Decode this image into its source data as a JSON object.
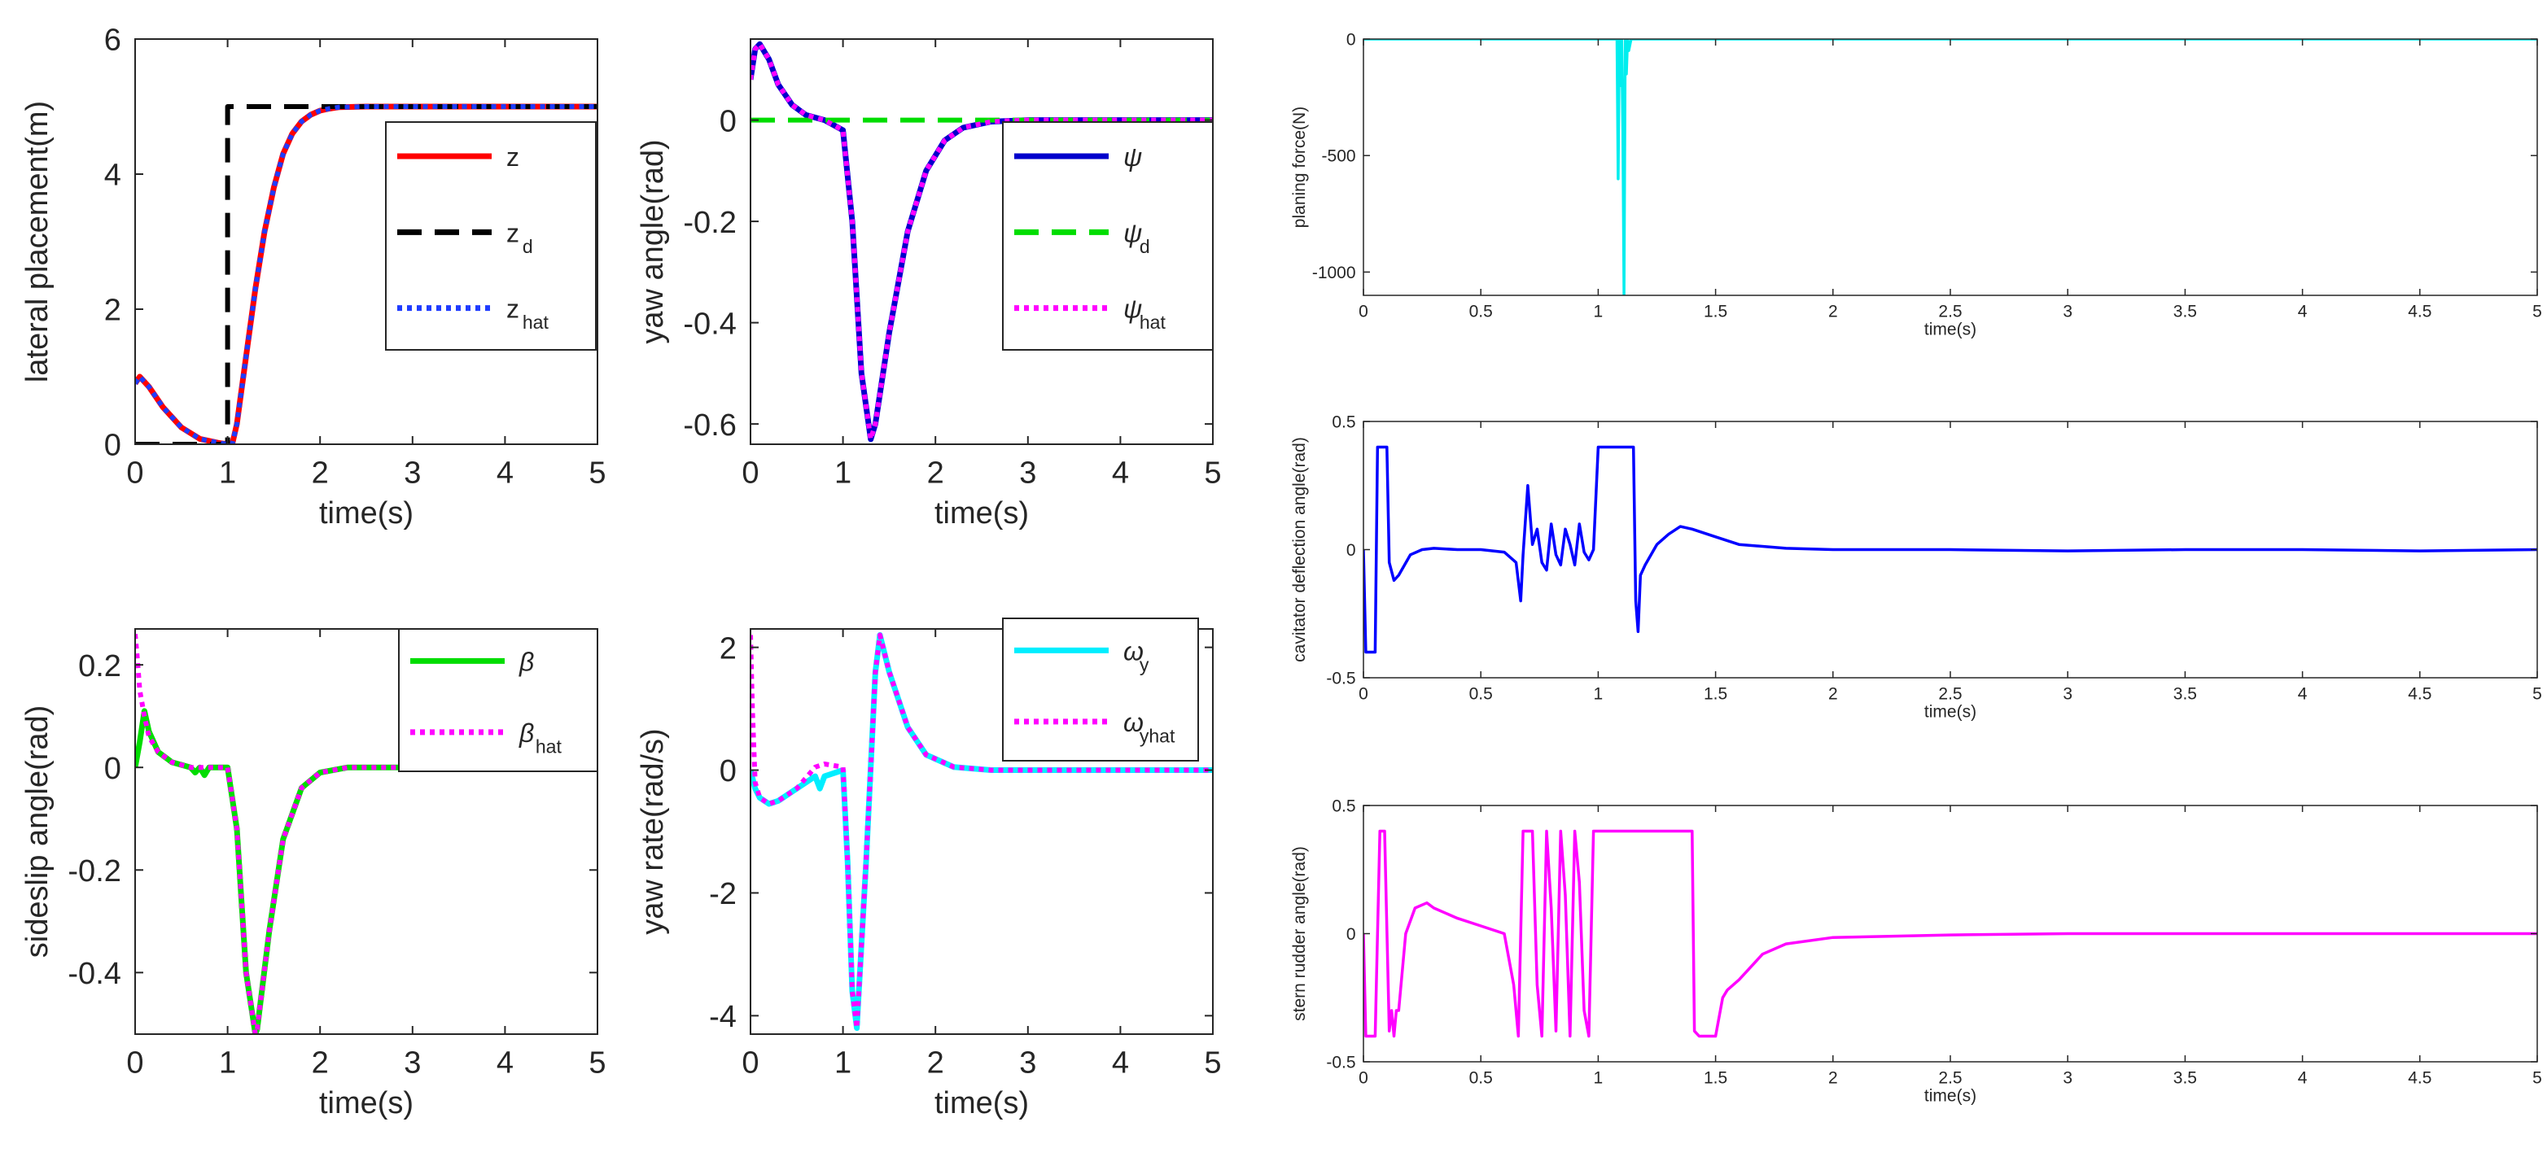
{
  "chart_data": [
    {
      "id": "lateral",
      "type": "line",
      "xlabel": "time(s)",
      "ylabel": "lateral placement(m)",
      "xlim": [
        0,
        5
      ],
      "ylim": [
        0,
        6
      ],
      "xticks": [
        0,
        1,
        2,
        3,
        4,
        5
      ],
      "xtick_labels": [
        "0",
        "1",
        "2",
        "3",
        "4",
        "5"
      ],
      "yticks": [
        0,
        2,
        4,
        6
      ],
      "ytick_labels": [
        "0",
        "2",
        "4",
        "6"
      ],
      "legend_loc": "right",
      "series": [
        {
          "name": "z",
          "legend": {
            "base": "z",
            "sub": ""
          },
          "color": "#ff0000",
          "dash": "solid",
          "x": [
            0,
            0.05,
            0.15,
            0.3,
            0.5,
            0.7,
            0.9,
            1.0,
            1.05,
            1.1,
            1.2,
            1.3,
            1.4,
            1.5,
            1.6,
            1.7,
            1.8,
            1.9,
            2.0,
            2.1,
            2.2,
            2.5,
            3,
            4,
            5
          ],
          "y": [
            0.9,
            1.0,
            0.85,
            0.55,
            0.25,
            0.08,
            0.02,
            0.0,
            0.0,
            0.3,
            1.3,
            2.3,
            3.15,
            3.8,
            4.3,
            4.6,
            4.78,
            4.88,
            4.94,
            4.97,
            4.99,
            5.0,
            5.0,
            5.0,
            5.0
          ]
        },
        {
          "name": "z_d",
          "legend": {
            "base": "z",
            "sub": "d"
          },
          "color": "#000000",
          "dash": "dashed",
          "x": [
            0,
            1.0,
            1.0,
            5
          ],
          "y": [
            0,
            0,
            5,
            5
          ]
        },
        {
          "name": "z_hat",
          "legend": {
            "base": "z",
            "sub": "hat"
          },
          "color": "#1f3cff",
          "dash": "dotted",
          "x": [
            0,
            0.05,
            0.15,
            0.3,
            0.5,
            0.7,
            0.9,
            1.0,
            1.05,
            1.1,
            1.2,
            1.3,
            1.4,
            1.5,
            1.6,
            1.7,
            1.8,
            1.9,
            2.0,
            2.1,
            2.2,
            2.5,
            3,
            4,
            5
          ],
          "y": [
            0.9,
            1.0,
            0.85,
            0.55,
            0.25,
            0.08,
            0.02,
            0.0,
            0.0,
            0.3,
            1.3,
            2.3,
            3.15,
            3.8,
            4.3,
            4.6,
            4.78,
            4.88,
            4.94,
            4.97,
            4.99,
            5.0,
            5.0,
            5.0,
            5.0
          ]
        }
      ]
    },
    {
      "id": "yaw",
      "type": "line",
      "xlabel": "time(s)",
      "ylabel": "yaw angle(rad)",
      "xlim": [
        0,
        5
      ],
      "ylim": [
        -0.64,
        0.16
      ],
      "xticks": [
        0,
        1,
        2,
        3,
        4,
        5
      ],
      "xtick_labels": [
        "0",
        "1",
        "2",
        "3",
        "4",
        "5"
      ],
      "yticks": [
        -0.6,
        -0.4,
        -0.2,
        0
      ],
      "ytick_labels": [
        "-0.6",
        "-0.4",
        "-0.2",
        "0"
      ],
      "legend_loc": "right",
      "series": [
        {
          "name": "psi",
          "legend": {
            "base": "ψ",
            "sub": ""
          },
          "color": "#0000cc",
          "dash": "solid",
          "x": [
            0,
            0.05,
            0.1,
            0.2,
            0.3,
            0.45,
            0.6,
            0.8,
            1.0,
            1.1,
            1.2,
            1.3,
            1.35,
            1.5,
            1.7,
            1.9,
            2.1,
            2.3,
            2.6,
            3,
            5
          ],
          "y": [
            0.08,
            0.14,
            0.15,
            0.12,
            0.07,
            0.03,
            0.01,
            0.0,
            -0.02,
            -0.2,
            -0.5,
            -0.63,
            -0.6,
            -0.42,
            -0.22,
            -0.1,
            -0.04,
            -0.015,
            -0.003,
            0.0,
            0.0
          ]
        },
        {
          "name": "psi_d",
          "legend": {
            "base": "ψ",
            "sub": "d"
          },
          "color": "#00dd00",
          "dash": "dashed",
          "x": [
            0,
            5
          ],
          "y": [
            0,
            0
          ]
        },
        {
          "name": "psi_hat",
          "legend": {
            "base": "ψ",
            "sub": "hat"
          },
          "color": "#ff00ff",
          "dash": "dotted",
          "x": [
            0,
            0.05,
            0.1,
            0.2,
            0.3,
            0.45,
            0.6,
            0.8,
            1.0,
            1.1,
            1.2,
            1.3,
            1.35,
            1.5,
            1.7,
            1.9,
            2.1,
            2.3,
            2.6,
            3,
            5
          ],
          "y": [
            0.08,
            0.14,
            0.15,
            0.12,
            0.07,
            0.03,
            0.01,
            0.0,
            -0.02,
            -0.2,
            -0.5,
            -0.63,
            -0.6,
            -0.42,
            -0.22,
            -0.1,
            -0.04,
            -0.015,
            -0.003,
            0.0,
            0.0
          ]
        }
      ]
    },
    {
      "id": "sideslip",
      "type": "line",
      "xlabel": "time(s)",
      "ylabel": "sideslip angle(rad)",
      "xlim": [
        0,
        5
      ],
      "ylim": [
        -0.52,
        0.27
      ],
      "xticks": [
        0,
        1,
        2,
        3,
        4,
        5
      ],
      "xtick_labels": [
        "0",
        "1",
        "2",
        "3",
        "4",
        "5"
      ],
      "yticks": [
        -0.4,
        -0.2,
        0,
        0.2
      ],
      "ytick_labels": [
        "-0.4",
        "-0.2",
        "0",
        "0.2"
      ],
      "legend_loc": "top-right",
      "series": [
        {
          "name": "beta",
          "legend": {
            "base": "β",
            "sub": ""
          },
          "color": "#00dd00",
          "dash": "solid",
          "x": [
            0,
            0.05,
            0.1,
            0.15,
            0.25,
            0.4,
            0.6,
            0.65,
            0.7,
            0.75,
            0.8,
            1.0,
            1.1,
            1.2,
            1.3,
            1.32,
            1.45,
            1.6,
            1.8,
            2.0,
            2.3,
            3,
            5
          ],
          "y": [
            0.0,
            0.05,
            0.11,
            0.07,
            0.03,
            0.01,
            0.0,
            -0.01,
            0.0,
            -0.015,
            0.0,
            0.0,
            -0.12,
            -0.4,
            -0.52,
            -0.51,
            -0.32,
            -0.14,
            -0.04,
            -0.01,
            0.0,
            0.0,
            0.0
          ]
        },
        {
          "name": "beta_hat",
          "legend": {
            "base": "β",
            "sub": "hat"
          },
          "color": "#ff00ff",
          "dash": "dotted",
          "x": [
            0,
            0.02,
            0.05,
            0.1,
            0.15,
            0.25,
            0.4,
            0.6,
            0.8,
            1.0,
            1.1,
            1.2,
            1.3,
            1.32,
            1.45,
            1.6,
            1.8,
            2.0,
            2.3,
            3,
            5
          ],
          "y": [
            0.26,
            0.22,
            0.15,
            0.1,
            0.06,
            0.03,
            0.01,
            0.0,
            0.0,
            0.0,
            -0.12,
            -0.4,
            -0.52,
            -0.51,
            -0.32,
            -0.14,
            -0.04,
            -0.01,
            0.0,
            0.0,
            0.0
          ]
        }
      ]
    },
    {
      "id": "yawrate",
      "type": "line",
      "xlabel": "time(s)",
      "ylabel": "yaw rate(rad/s)",
      "xlim": [
        0,
        5
      ],
      "ylim": [
        -4.3,
        2.3
      ],
      "xticks": [
        0,
        1,
        2,
        3,
        4,
        5
      ],
      "xtick_labels": [
        "0",
        "1",
        "2",
        "3",
        "4",
        "5"
      ],
      "yticks": [
        -4,
        -2,
        0,
        2
      ],
      "ytick_labels": [
        "-4",
        "-2",
        "0",
        "2"
      ],
      "legend_loc": "top-right",
      "series": [
        {
          "name": "omega_y",
          "legend": {
            "base": "ω",
            "sub": "y"
          },
          "color": "#00eeff",
          "dash": "solid",
          "x": [
            0,
            0.05,
            0.1,
            0.2,
            0.3,
            0.5,
            0.7,
            0.75,
            0.8,
            1.0,
            1.05,
            1.1,
            1.15,
            1.25,
            1.35,
            1.4,
            1.5,
            1.7,
            1.9,
            2.2,
            2.6,
            5
          ],
          "y": [
            0.0,
            -0.3,
            -0.45,
            -0.55,
            -0.5,
            -0.3,
            -0.1,
            -0.3,
            -0.1,
            0.0,
            -1.5,
            -3.6,
            -4.2,
            -1.5,
            1.6,
            2.2,
            1.6,
            0.7,
            0.25,
            0.05,
            0.0,
            0.0
          ]
        },
        {
          "name": "omega_yhat",
          "legend": {
            "base": "ω",
            "sub": "yhat"
          },
          "color": "#ff00ff",
          "dash": "dotted",
          "x": [
            0,
            0.02,
            0.05,
            0.1,
            0.2,
            0.3,
            0.5,
            0.7,
            0.8,
            1.0,
            1.05,
            1.1,
            1.15,
            1.25,
            1.35,
            1.4,
            1.5,
            1.7,
            1.9,
            2.2,
            2.6,
            5
          ],
          "y": [
            2.2,
            1.0,
            -0.2,
            -0.45,
            -0.55,
            -0.5,
            -0.3,
            0.05,
            0.1,
            0.05,
            -1.5,
            -3.6,
            -4.2,
            -1.5,
            1.6,
            2.2,
            1.6,
            0.7,
            0.25,
            0.05,
            0.0,
            0.0
          ]
        }
      ]
    },
    {
      "id": "planing",
      "type": "line",
      "xlabel": "time(s)",
      "ylabel": "planing force(N)",
      "xlim": [
        0,
        5
      ],
      "ylim": [
        -1100,
        0
      ],
      "xticks": [
        0,
        0.5,
        1,
        1.5,
        2,
        2.5,
        3,
        3.5,
        4,
        4.5,
        5
      ],
      "xtick_labels": [
        "0",
        "0.5",
        "1",
        "1.5",
        "2",
        "2.5",
        "3",
        "3.5",
        "4",
        "4.5",
        "5"
      ],
      "yticks": [
        -1000,
        -500,
        0
      ],
      "ytick_labels": [
        "-1000",
        "-500",
        "0"
      ],
      "legend_loc": "none",
      "series": [
        {
          "name": "planing force",
          "color": "#00eeee",
          "dash": "solid",
          "x": [
            0,
            1.08,
            1.085,
            1.09,
            1.095,
            1.1,
            1.105,
            1.11,
            1.115,
            1.12,
            1.125,
            1.13,
            1.14,
            5
          ],
          "y": [
            0,
            0,
            -600,
            0,
            -200,
            0,
            -400,
            -1100,
            0,
            -150,
            0,
            -50,
            0,
            0
          ]
        }
      ]
    },
    {
      "id": "cavitator",
      "type": "line",
      "xlabel": "time(s)",
      "ylabel": "cavitator deflection angle(rad)",
      "xlim": [
        0,
        5
      ],
      "ylim": [
        -0.5,
        0.5
      ],
      "xticks": [
        0,
        0.5,
        1,
        1.5,
        2,
        2.5,
        3,
        3.5,
        4,
        4.5,
        5
      ],
      "xtick_labels": [
        "0",
        "0.5",
        "1",
        "1.5",
        "2",
        "2.5",
        "3",
        "3.5",
        "4",
        "4.5",
        "5"
      ],
      "yticks": [
        -0.5,
        0,
        0.5
      ],
      "ytick_labels": [
        "-0.5",
        "0",
        "0.5"
      ],
      "legend_loc": "none",
      "series": [
        {
          "name": "cavitator deflection angle",
          "color": "#0000ff",
          "dash": "solid",
          "x": [
            0,
            0.01,
            0.03,
            0.05,
            0.06,
            0.08,
            0.1,
            0.11,
            0.13,
            0.15,
            0.2,
            0.25,
            0.3,
            0.4,
            0.5,
            0.6,
            0.65,
            0.67,
            0.68,
            0.7,
            0.72,
            0.74,
            0.76,
            0.78,
            0.8,
            0.82,
            0.84,
            0.86,
            0.88,
            0.9,
            0.92,
            0.94,
            0.96,
            0.98,
            1.0,
            1.02,
            1.05,
            1.1,
            1.15,
            1.16,
            1.17,
            1.18,
            1.2,
            1.25,
            1.3,
            1.35,
            1.4,
            1.5,
            1.6,
            1.8,
            2.0,
            2.5,
            3.0,
            3.5,
            4.0,
            4.5,
            5.0
          ],
          "y": [
            0.0,
            -0.4,
            -0.4,
            -0.4,
            0.4,
            0.4,
            0.4,
            -0.05,
            -0.12,
            -0.1,
            -0.02,
            0.0,
            0.005,
            0.0,
            0.0,
            -0.01,
            -0.05,
            -0.2,
            -0.02,
            0.25,
            0.02,
            0.08,
            -0.05,
            -0.08,
            0.1,
            -0.02,
            -0.06,
            0.08,
            0.02,
            -0.06,
            0.1,
            -0.01,
            -0.04,
            0.0,
            0.4,
            0.4,
            0.4,
            0.4,
            0.4,
            -0.2,
            -0.32,
            -0.1,
            -0.06,
            0.02,
            0.06,
            0.09,
            0.08,
            0.05,
            0.02,
            0.005,
            0.0,
            0.0,
            -0.005,
            0.0,
            0.0,
            -0.005,
            0.0
          ]
        }
      ]
    },
    {
      "id": "stern",
      "type": "line",
      "xlabel": "time(s)",
      "ylabel": "stern rudder angle(rad)",
      "xlim": [
        0,
        5
      ],
      "ylim": [
        -0.5,
        0.5
      ],
      "xticks": [
        0,
        0.5,
        1,
        1.5,
        2,
        2.5,
        3,
        3.5,
        4,
        4.5,
        5
      ],
      "xtick_labels": [
        "0",
        "0.5",
        "1",
        "1.5",
        "2",
        "2.5",
        "3",
        "3.5",
        "4",
        "4.5",
        "5"
      ],
      "yticks": [
        -0.5,
        0,
        0.5
      ],
      "ytick_labels": [
        "-0.5",
        "0",
        "0.5"
      ],
      "legend_loc": "none",
      "series": [
        {
          "name": "stern rudder angle",
          "color": "#ff00ff",
          "dash": "solid",
          "x": [
            0,
            0.01,
            0.05,
            0.07,
            0.09,
            0.11,
            0.12,
            0.13,
            0.14,
            0.15,
            0.18,
            0.22,
            0.27,
            0.3,
            0.4,
            0.5,
            0.6,
            0.64,
            0.66,
            0.68,
            0.7,
            0.72,
            0.74,
            0.76,
            0.78,
            0.8,
            0.82,
            0.84,
            0.86,
            0.88,
            0.9,
            0.92,
            0.94,
            0.96,
            0.98,
            1.0,
            1.05,
            1.1,
            1.2,
            1.3,
            1.4,
            1.41,
            1.43,
            1.45,
            1.5,
            1.53,
            1.55,
            1.6,
            1.7,
            1.8,
            2.0,
            2.5,
            3.0,
            3.5,
            4.0,
            4.5,
            5.0
          ],
          "y": [
            0.0,
            -0.4,
            -0.4,
            0.4,
            0.4,
            -0.38,
            -0.3,
            -0.4,
            -0.3,
            -0.3,
            0.0,
            0.1,
            0.12,
            0.1,
            0.06,
            0.03,
            0.0,
            -0.2,
            -0.4,
            0.4,
            0.4,
            0.4,
            -0.2,
            -0.4,
            0.4,
            0.1,
            -0.38,
            0.4,
            0.15,
            -0.4,
            0.4,
            0.2,
            -0.3,
            -0.4,
            0.4,
            0.4,
            0.4,
            0.4,
            0.4,
            0.4,
            0.4,
            -0.38,
            -0.4,
            -0.4,
            -0.4,
            -0.25,
            -0.22,
            -0.18,
            -0.08,
            -0.04,
            -0.015,
            -0.005,
            0.0,
            0.0,
            0.0,
            0.0,
            0.0
          ]
        }
      ]
    }
  ]
}
